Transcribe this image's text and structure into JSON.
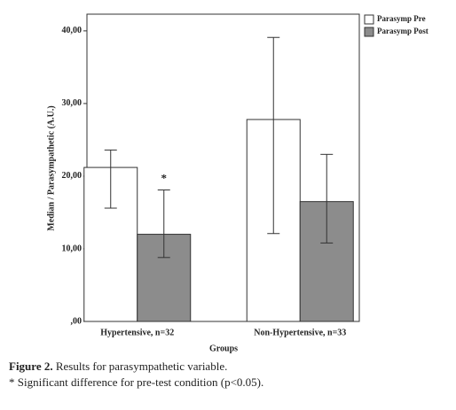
{
  "chart_data": {
    "type": "bar",
    "y_label": "Median / Parasympathetic (A.U.)",
    "x_label": "Groups",
    "categories": [
      "Hypertensive, n=32",
      "Non-Hypertensive, n=33"
    ],
    "series": [
      {
        "name": "Parasymp Pre",
        "color": "#ffffff",
        "values": [
          21.2,
          27.8
        ],
        "lower": [
          15.6,
          12.1
        ],
        "upper": [
          23.6,
          39.1
        ]
      },
      {
        "name": "Parasymp Post",
        "color": "#8c8c8c",
        "values": [
          12.0,
          16.5
        ],
        "lower": [
          8.8,
          10.8
        ],
        "upper": [
          18.1,
          23.0
        ]
      }
    ],
    "ylim": [
      0,
      42.3
    ],
    "yticks": [
      {
        "value": 0,
        "label": ",00"
      },
      {
        "value": 10,
        "label": "10,00"
      },
      {
        "value": 20,
        "label": "20,00"
      },
      {
        "value": 30,
        "label": "30,00"
      },
      {
        "value": 40,
        "label": "40,00"
      }
    ],
    "significance": {
      "text": "*",
      "series": 1,
      "category": 0
    }
  },
  "caption": {
    "label": "Figure 2.",
    "text": "Results for parasympathetic variable.",
    "note": "* Significant difference for pre-test condition (p<0.05)."
  }
}
